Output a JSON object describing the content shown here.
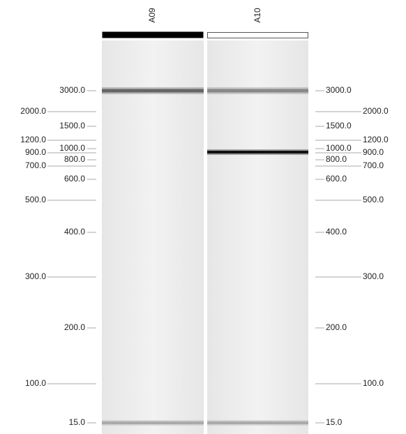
{
  "lanes": [
    {
      "label": "A09"
    },
    {
      "label": "A10"
    }
  ],
  "ladder": [
    "3000.0",
    "2000.0",
    "1500.0",
    "1200.0",
    "1000.0",
    "900.0",
    "800.0",
    "700.0",
    "600.0",
    "500.0",
    "400.0",
    "300.0",
    "200.0",
    "100.0",
    "15.0"
  ]
}
